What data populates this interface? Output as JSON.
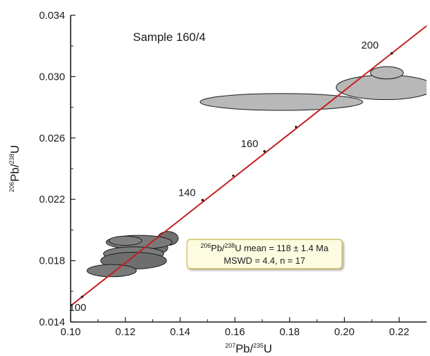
{
  "chart_data": {
    "type": "scatter",
    "subtype": "concordia-diagram",
    "xlabel": {
      "sup1": "207",
      "base1": "Pb/",
      "sup2": "235",
      "base2": "U"
    },
    "ylabel": {
      "sup1": "206",
      "base1": "Pb/",
      "sup2": "238",
      "base2": "U"
    },
    "xlim": [
      0.1,
      0.23
    ],
    "ylim": [
      0.014,
      0.034
    ],
    "x_ticks": [
      "0.10",
      "0.12",
      "0.14",
      "0.16",
      "0.18",
      "0.20",
      "0.22"
    ],
    "y_ticks": [
      "0.014",
      "0.018",
      "0.022",
      "0.026",
      "0.030",
      "0.034"
    ],
    "grid": false,
    "sample_label": "Sample 160/4",
    "concordia": {
      "color": "#c41e1e",
      "age_points": [
        {
          "age": 100,
          "label": "100",
          "x": 0.1042,
          "y": 0.01564
        },
        {
          "age": 140,
          "label": "140",
          "x": 0.1482,
          "y": 0.02195
        },
        {
          "age": 160,
          "label": "160",
          "x": 0.1708,
          "y": 0.02513
        },
        {
          "age": 200,
          "label": "200",
          "x": 0.2173,
          "y": 0.03152
        }
      ],
      "minor_ticks": [
        {
          "x": 0.1594,
          "y": 0.02354
        },
        {
          "x": 0.1823,
          "y": 0.02672
        }
      ]
    },
    "ellipses": [
      {
        "cx": 0.1355,
        "cy": 0.01945,
        "rx": 0.0038,
        "ry": 0.00045,
        "fill": "#707070"
      },
      {
        "cx": 0.13,
        "cy": 0.01885,
        "rx": 0.0055,
        "ry": 0.00045,
        "fill": "#707070"
      },
      {
        "cx": 0.125,
        "cy": 0.0192,
        "rx": 0.012,
        "ry": 0.00045,
        "fill": "#7a7a7a"
      },
      {
        "cx": 0.123,
        "cy": 0.01845,
        "rx": 0.011,
        "ry": 0.00045,
        "fill": "#7a7a7a"
      },
      {
        "cx": 0.12,
        "cy": 0.0193,
        "rx": 0.006,
        "ry": 0.0003,
        "fill": "#808080"
      },
      {
        "cx": 0.123,
        "cy": 0.018,
        "rx": 0.012,
        "ry": 0.00055,
        "fill": "#6e6e6e"
      },
      {
        "cx": 0.115,
        "cy": 0.01735,
        "rx": 0.009,
        "ry": 0.0004,
        "fill": "#7a7a7a"
      },
      {
        "cx": 0.215,
        "cy": 0.0293,
        "rx": 0.018,
        "ry": 0.0008,
        "fill": "#b8b8b8"
      },
      {
        "cx": 0.2155,
        "cy": 0.03025,
        "rx": 0.006,
        "ry": 0.0004,
        "fill": "#b8b8b8"
      },
      {
        "cx": 0.177,
        "cy": 0.02835,
        "rx": 0.0297,
        "ry": 0.00055,
        "fill": "#b8b8b8"
      }
    ],
    "stats": {
      "line1": {
        "sup1": "206",
        "base1": "Pb/",
        "sup2": "238",
        "base2": "U mean = 118 ± 1.4 Ma"
      },
      "line2": "MSWD = 4.4, n = 17",
      "box_fill": "#fdfce0",
      "box_stroke": "#c8b84a"
    }
  }
}
